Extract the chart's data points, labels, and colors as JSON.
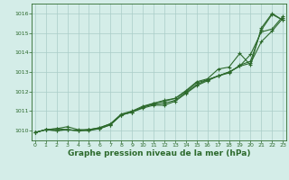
{
  "x": [
    0,
    1,
    2,
    3,
    4,
    5,
    6,
    7,
    8,
    9,
    10,
    11,
    12,
    13,
    14,
    15,
    16,
    17,
    18,
    19,
    20,
    21,
    22,
    23
  ],
  "line1": [
    1009.9,
    1010.05,
    1010.1,
    1010.2,
    1010.05,
    1010.05,
    1010.15,
    1010.35,
    1010.8,
    1010.95,
    1011.15,
    1011.3,
    1011.3,
    1011.5,
    1011.9,
    1012.3,
    1012.55,
    1012.8,
    1013.0,
    1013.3,
    1013.9,
    1015.05,
    1015.2,
    1015.85
  ],
  "line2": [
    1009.9,
    1010.05,
    1010.1,
    1010.05,
    1010.0,
    1010.05,
    1010.1,
    1010.3,
    1010.8,
    1010.95,
    1011.2,
    1011.35,
    1011.4,
    1011.55,
    1011.95,
    1012.35,
    1012.6,
    1012.8,
    1013.0,
    1013.3,
    1013.45,
    1014.55,
    1015.1,
    1015.75
  ],
  "line3": [
    1009.9,
    1010.05,
    1010.0,
    1010.05,
    1010.0,
    1010.0,
    1010.1,
    1010.3,
    1010.8,
    1010.95,
    1011.2,
    1011.4,
    1011.5,
    1011.65,
    1012.0,
    1012.45,
    1012.6,
    1012.8,
    1012.95,
    1013.35,
    1013.55,
    1015.15,
    1015.95,
    1015.65
  ],
  "line4": [
    1009.9,
    1010.05,
    1010.0,
    1010.05,
    1010.0,
    1010.05,
    1010.15,
    1010.35,
    1010.85,
    1011.0,
    1011.25,
    1011.4,
    1011.55,
    1011.65,
    1012.05,
    1012.5,
    1012.65,
    1013.15,
    1013.25,
    1013.95,
    1013.35,
    1015.25,
    1016.0,
    1015.65
  ],
  "line_color": "#2d6a2d",
  "bg_color": "#d4ede8",
  "grid_color": "#aaccc8",
  "xlabel": "Graphe pression niveau de la mer (hPa)",
  "ylim_min": 1009.5,
  "ylim_max": 1016.5,
  "yticks": [
    1010,
    1011,
    1012,
    1013,
    1014,
    1015,
    1016
  ],
  "xticks": [
    0,
    1,
    2,
    3,
    4,
    5,
    6,
    7,
    8,
    9,
    10,
    11,
    12,
    13,
    14,
    15,
    16,
    17,
    18,
    19,
    20,
    21,
    22,
    23
  ],
  "marker": "+",
  "markersize": 3,
  "linewidth": 0.8
}
